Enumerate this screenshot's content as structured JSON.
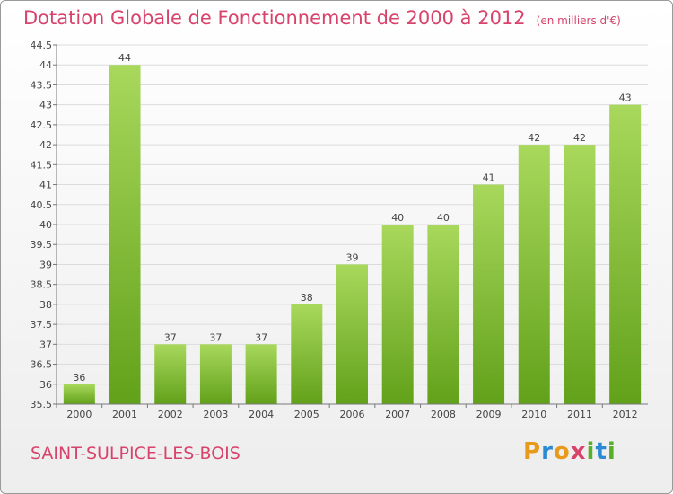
{
  "header": {
    "title": "Dotation Globale de Fonctionnement de 2000 à 2012",
    "unit": "(en milliers d'€)"
  },
  "footer": {
    "commune": "SAINT-SULPICE-LES-BOIS",
    "brand": "Proxiti"
  },
  "colors": {
    "title": "#d8436b",
    "bar_top": "#a8d85c",
    "bar_bottom": "#62a11a",
    "grid": "#dcdcdc",
    "brand_letters": [
      "#e89a1a",
      "#2a8ad4",
      "#e89a1a",
      "#d8436b",
      "#58b02a",
      "#2a8ad4",
      "#58b02a"
    ]
  },
  "chart_data": {
    "type": "bar",
    "categories": [
      "2000",
      "2001",
      "2002",
      "2003",
      "2004",
      "2005",
      "2006",
      "2007",
      "2008",
      "2009",
      "2010",
      "2011",
      "2012"
    ],
    "values": [
      36,
      44,
      37,
      37,
      37,
      38,
      39,
      40,
      40,
      41,
      42,
      42,
      43
    ],
    "title": "Dotation Globale de Fonctionnement de 2000 à 2012",
    "subtitle": "(en milliers d'€)",
    "xlabel": "",
    "ylabel": "",
    "ylim": [
      35.5,
      44.5
    ],
    "yticks": [
      "35.5",
      "36",
      "36.5",
      "37",
      "37.5",
      "38",
      "38.5",
      "39",
      "39.5",
      "40",
      "40.5",
      "41",
      "41.5",
      "42",
      "42.5",
      "43",
      "43.5",
      "44",
      "44.5"
    ],
    "grid": true,
    "legend": "none"
  }
}
